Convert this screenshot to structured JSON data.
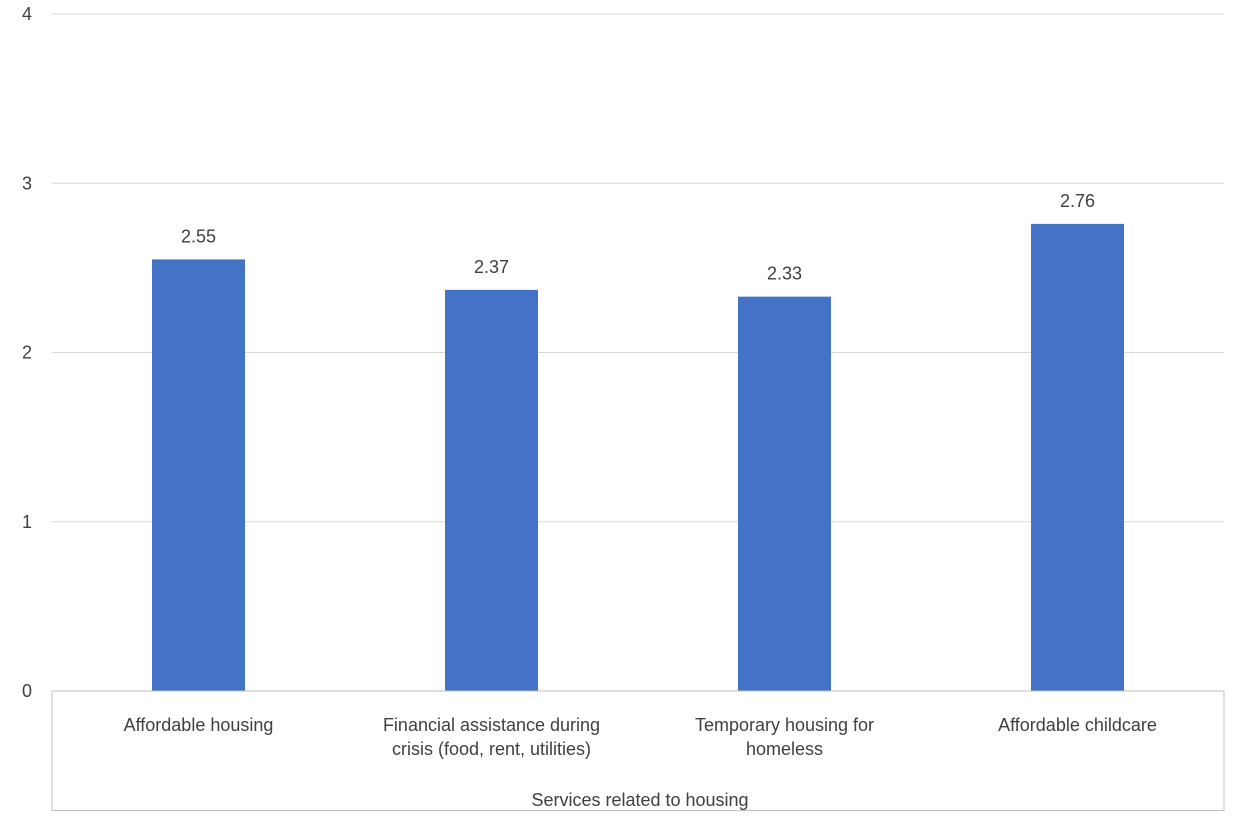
{
  "chart_data": {
    "type": "bar",
    "categories": [
      [
        "Affordable housing"
      ],
      [
        "Financial assistance during",
        "crisis (food, rent, utilities)"
      ],
      [
        "Temporary housing for",
        "homeless"
      ],
      [
        "Affordable childcare"
      ]
    ],
    "values": [
      2.55,
      2.37,
      2.33,
      2.76
    ],
    "data_labels": [
      "2.55",
      "2.37",
      "2.33",
      "2.76"
    ],
    "ylim": [
      0,
      4
    ],
    "yticks": [
      0,
      1,
      2,
      3,
      4
    ],
    "ytick_labels": [
      "0",
      "1",
      "2",
      "3",
      "4"
    ],
    "group_label": "Services related to housing",
    "grid": true,
    "legend": "none",
    "colors": {
      "bar": "#4472C4",
      "grid": "#D9D9D9",
      "axis": "#BFBFBF",
      "text": "#404040"
    }
  }
}
